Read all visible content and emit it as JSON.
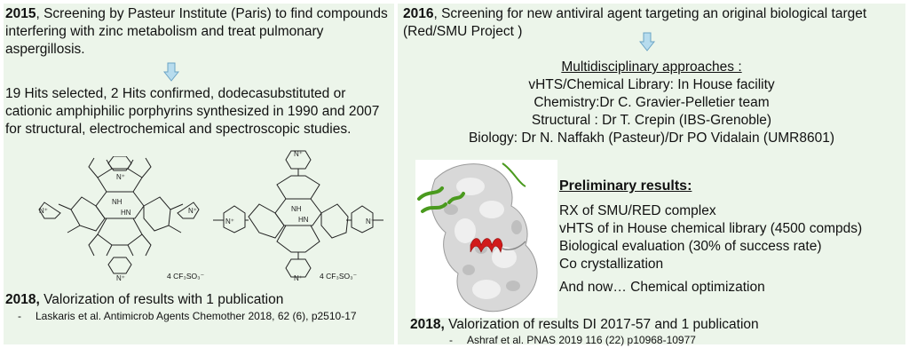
{
  "left": {
    "p2015": {
      "year": "2015",
      "text": ", Screening by Pasteur Institute (Paris) to find compounds interfering with zinc metabolism and treat pulmonary aspergillosis."
    },
    "hits_text": "19 Hits selected, 2 Hits confirmed, dodecasubstituted or cationic amphiphilic porphyrins synthesized in 1990 and 2007 for structural, electrochemical and spectroscopic studies.",
    "counterion": "4 CF₃SO₃⁻",
    "valorization": {
      "year": "2018,",
      "text": " Valorization of results with 1 publication",
      "reference": "Laskaris et al.  Antimicrob Agents Chemother 2018, 62 (6), p2510-17"
    }
  },
  "right": {
    "p2016": {
      "year": "2016",
      "text": ", Screening for new antiviral agent targeting an original biological target (Red/SMU Project )"
    },
    "approaches": {
      "title": "Multidisciplinary approaches :",
      "lines": [
        "vHTS/Chemical Library: In House facility",
        "Chemistry:Dr C. Gravier-Pelletier team",
        "Structural : Dr T. Crepin (IBS-Grenoble)",
        "Biology: Dr N. Naffakh (Pasteur)/Dr PO Vidalain (UMR8601)"
      ]
    },
    "preliminary": {
      "title": "Preliminary results:",
      "items": [
        "RX of SMU/RED complex",
        "vHTS of in House chemical library (4500 compds)",
        "Biological evaluation (30% of success rate)",
        "Co crystallization"
      ],
      "now": "And now… Chemical optimization"
    },
    "valorization": {
      "year": "2018,",
      "text": " Valorization of results DI 2017-57 and 1 publication",
      "reference": "Ashraf et al. PNAS 2019 116 (22) p10968-10977"
    }
  },
  "colors": {
    "panel_bg": "#ecf5ea",
    "arrow_fill": "#b7dcee",
    "arrow_stroke": "#6aa3c4",
    "protein_surface": "#d8d8d8",
    "helix_red": "#d11a1a",
    "helix_green": "#4a9a1e"
  }
}
